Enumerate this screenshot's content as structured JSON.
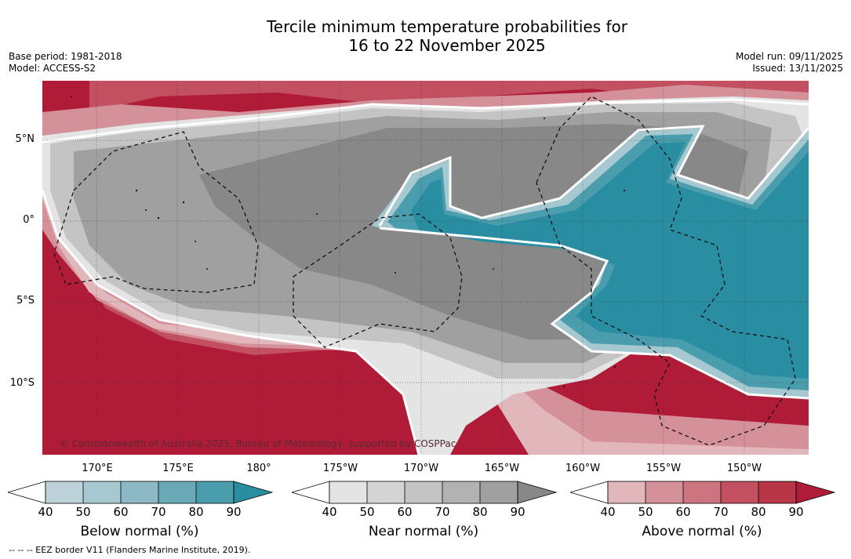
{
  "title": {
    "line1": "Tercile minimum temperature probabilities for",
    "line2": "16 to 22 November 2025"
  },
  "meta": {
    "base_period": "Base period: 1981-2018",
    "model": "Model: ACCESS-S2",
    "model_run": "Model run: 09/11/2025",
    "issued": "Issued: 13/11/2025"
  },
  "latitude_labels": [
    "5°N",
    "0°",
    "5°S",
    "10°S"
  ],
  "longitude_labels": [
    "170°E",
    "175°E",
    "180°",
    "175°W",
    "170°W",
    "165°W",
    "160°W",
    "155°W",
    "150°W"
  ],
  "copyright": "© Commonwealth of Australia 2025, Bureau of Meteorology, supported by COSPPac",
  "colorbars": [
    {
      "title": "Below normal (%)",
      "ticks": [
        "40",
        "50",
        "60",
        "70",
        "80",
        "90"
      ],
      "colors": [
        "#bdd3d9",
        "#a6c8d0",
        "#8cb9c4",
        "#6aaab7",
        "#4a9dac",
        "#2a8ea3"
      ]
    },
    {
      "title": "Near normal (%)",
      "ticks": [
        "40",
        "50",
        "60",
        "70",
        "80",
        "90"
      ],
      "colors": [
        "#e4e4e4",
        "#d4d4d4",
        "#c4c4c4",
        "#b2b2b2",
        "#a0a0a0",
        "#888888"
      ]
    },
    {
      "title": "Above normal (%)",
      "ticks": [
        "40",
        "50",
        "60",
        "70",
        "80",
        "90"
      ],
      "colors": [
        "#e1b7bc",
        "#d59199",
        "#cc7580",
        "#c25061",
        "#b93548",
        "#b01c38"
      ]
    }
  ],
  "footnote": "--  --  -- EEZ border V11 (Flanders Marine Institute, 2019).",
  "map": {
    "colors": {
      "above_strong": "#b01c38",
      "above_mid": "#c25061",
      "above_light": "#d59199",
      "above_faint": "#e1b7bc",
      "near_light": "#e4e4e4",
      "near_mid": "#c4c4c4",
      "near_dark": "#a0a0a0",
      "near_strong": "#888888",
      "below_light": "#a6c8d0",
      "below_mid": "#4a9dac",
      "below_strong": "#2a8ea3"
    }
  }
}
